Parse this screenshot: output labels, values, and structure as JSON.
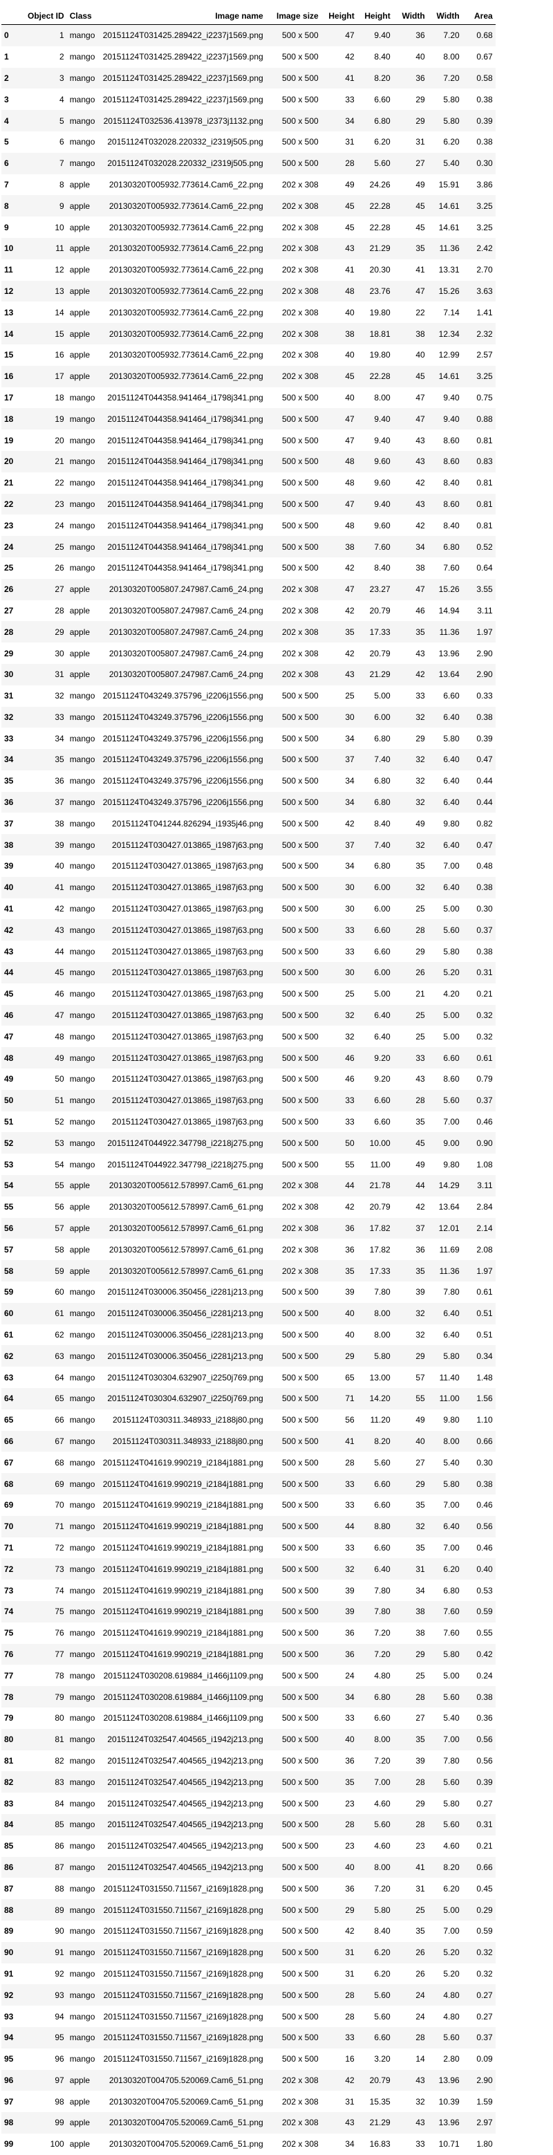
{
  "columns": [
    "",
    "Object ID",
    "Class",
    "Image name",
    "Image size",
    "Height",
    "Height",
    "Width",
    "Width",
    "Area"
  ],
  "rows": [
    [
      "0",
      "1",
      "mango",
      "20151124T031425.289422_i2237j1569.png",
      "500 x 500",
      "47",
      "9.40",
      "36",
      "7.20",
      "0.68"
    ],
    [
      "1",
      "2",
      "mango",
      "20151124T031425.289422_i2237j1569.png",
      "500 x 500",
      "42",
      "8.40",
      "40",
      "8.00",
      "0.67"
    ],
    [
      "2",
      "3",
      "mango",
      "20151124T031425.289422_i2237j1569.png",
      "500 x 500",
      "41",
      "8.20",
      "36",
      "7.20",
      "0.58"
    ],
    [
      "3",
      "4",
      "mango",
      "20151124T031425.289422_i2237j1569.png",
      "500 x 500",
      "33",
      "6.60",
      "29",
      "5.80",
      "0.38"
    ],
    [
      "4",
      "5",
      "mango",
      "20151124T032536.413978_i2373j1132.png",
      "500 x 500",
      "34",
      "6.80",
      "29",
      "5.80",
      "0.39"
    ],
    [
      "5",
      "6",
      "mango",
      "20151124T032028.220332_i2319j505.png",
      "500 x 500",
      "31",
      "6.20",
      "31",
      "6.20",
      "0.38"
    ],
    [
      "6",
      "7",
      "mango",
      "20151124T032028.220332_i2319j505.png",
      "500 x 500",
      "28",
      "5.60",
      "27",
      "5.40",
      "0.30"
    ],
    [
      "7",
      "8",
      "apple",
      "20130320T005932.773614.Cam6_22.png",
      "202 x 308",
      "49",
      "24.26",
      "49",
      "15.91",
      "3.86"
    ],
    [
      "8",
      "9",
      "apple",
      "20130320T005932.773614.Cam6_22.png",
      "202 x 308",
      "45",
      "22.28",
      "45",
      "14.61",
      "3.25"
    ],
    [
      "9",
      "10",
      "apple",
      "20130320T005932.773614.Cam6_22.png",
      "202 x 308",
      "45",
      "22.28",
      "45",
      "14.61",
      "3.25"
    ],
    [
      "10",
      "11",
      "apple",
      "20130320T005932.773614.Cam6_22.png",
      "202 x 308",
      "43",
      "21.29",
      "35",
      "11.36",
      "2.42"
    ],
    [
      "11",
      "12",
      "apple",
      "20130320T005932.773614.Cam6_22.png",
      "202 x 308",
      "41",
      "20.30",
      "41",
      "13.31",
      "2.70"
    ],
    [
      "12",
      "13",
      "apple",
      "20130320T005932.773614.Cam6_22.png",
      "202 x 308",
      "48",
      "23.76",
      "47",
      "15.26",
      "3.63"
    ],
    [
      "13",
      "14",
      "apple",
      "20130320T005932.773614.Cam6_22.png",
      "202 x 308",
      "40",
      "19.80",
      "22",
      "7.14",
      "1.41"
    ],
    [
      "14",
      "15",
      "apple",
      "20130320T005932.773614.Cam6_22.png",
      "202 x 308",
      "38",
      "18.81",
      "38",
      "12.34",
      "2.32"
    ],
    [
      "15",
      "16",
      "apple",
      "20130320T005932.773614.Cam6_22.png",
      "202 x 308",
      "40",
      "19.80",
      "40",
      "12.99",
      "2.57"
    ],
    [
      "16",
      "17",
      "apple",
      "20130320T005932.773614.Cam6_22.png",
      "202 x 308",
      "45",
      "22.28",
      "45",
      "14.61",
      "3.25"
    ],
    [
      "17",
      "18",
      "mango",
      "20151124T044358.941464_i1798j341.png",
      "500 x 500",
      "40",
      "8.00",
      "47",
      "9.40",
      "0.75"
    ],
    [
      "18",
      "19",
      "mango",
      "20151124T044358.941464_i1798j341.png",
      "500 x 500",
      "47",
      "9.40",
      "47",
      "9.40",
      "0.88"
    ],
    [
      "19",
      "20",
      "mango",
      "20151124T044358.941464_i1798j341.png",
      "500 x 500",
      "47",
      "9.40",
      "43",
      "8.60",
      "0.81"
    ],
    [
      "20",
      "21",
      "mango",
      "20151124T044358.941464_i1798j341.png",
      "500 x 500",
      "48",
      "9.60",
      "43",
      "8.60",
      "0.83"
    ],
    [
      "21",
      "22",
      "mango",
      "20151124T044358.941464_i1798j341.png",
      "500 x 500",
      "48",
      "9.60",
      "42",
      "8.40",
      "0.81"
    ],
    [
      "22",
      "23",
      "mango",
      "20151124T044358.941464_i1798j341.png",
      "500 x 500",
      "47",
      "9.40",
      "43",
      "8.60",
      "0.81"
    ],
    [
      "23",
      "24",
      "mango",
      "20151124T044358.941464_i1798j341.png",
      "500 x 500",
      "48",
      "9.60",
      "42",
      "8.40",
      "0.81"
    ],
    [
      "24",
      "25",
      "mango",
      "20151124T044358.941464_i1798j341.png",
      "500 x 500",
      "38",
      "7.60",
      "34",
      "6.80",
      "0.52"
    ],
    [
      "25",
      "26",
      "mango",
      "20151124T044358.941464_i1798j341.png",
      "500 x 500",
      "42",
      "8.40",
      "38",
      "7.60",
      "0.64"
    ],
    [
      "26",
      "27",
      "apple",
      "20130320T005807.247987.Cam6_24.png",
      "202 x 308",
      "47",
      "23.27",
      "47",
      "15.26",
      "3.55"
    ],
    [
      "27",
      "28",
      "apple",
      "20130320T005807.247987.Cam6_24.png",
      "202 x 308",
      "42",
      "20.79",
      "46",
      "14.94",
      "3.11"
    ],
    [
      "28",
      "29",
      "apple",
      "20130320T005807.247987.Cam6_24.png",
      "202 x 308",
      "35",
      "17.33",
      "35",
      "11.36",
      "1.97"
    ],
    [
      "29",
      "30",
      "apple",
      "20130320T005807.247987.Cam6_24.png",
      "202 x 308",
      "42",
      "20.79",
      "43",
      "13.96",
      "2.90"
    ],
    [
      "30",
      "31",
      "apple",
      "20130320T005807.247987.Cam6_24.png",
      "202 x 308",
      "43",
      "21.29",
      "42",
      "13.64",
      "2.90"
    ],
    [
      "31",
      "32",
      "mango",
      "20151124T043249.375796_i2206j1556.png",
      "500 x 500",
      "25",
      "5.00",
      "33",
      "6.60",
      "0.33"
    ],
    [
      "32",
      "33",
      "mango",
      "20151124T043249.375796_i2206j1556.png",
      "500 x 500",
      "30",
      "6.00",
      "32",
      "6.40",
      "0.38"
    ],
    [
      "33",
      "34",
      "mango",
      "20151124T043249.375796_i2206j1556.png",
      "500 x 500",
      "34",
      "6.80",
      "29",
      "5.80",
      "0.39"
    ],
    [
      "34",
      "35",
      "mango",
      "20151124T043249.375796_i2206j1556.png",
      "500 x 500",
      "37",
      "7.40",
      "32",
      "6.40",
      "0.47"
    ],
    [
      "35",
      "36",
      "mango",
      "20151124T043249.375796_i2206j1556.png",
      "500 x 500",
      "34",
      "6.80",
      "32",
      "6.40",
      "0.44"
    ],
    [
      "36",
      "37",
      "mango",
      "20151124T043249.375796_i2206j1556.png",
      "500 x 500",
      "34",
      "6.80",
      "32",
      "6.40",
      "0.44"
    ],
    [
      "37",
      "38",
      "mango",
      "20151124T041244.826294_i1935j46.png",
      "500 x 500",
      "42",
      "8.40",
      "49",
      "9.80",
      "0.82"
    ],
    [
      "38",
      "39",
      "mango",
      "20151124T030427.013865_i1987j63.png",
      "500 x 500",
      "37",
      "7.40",
      "32",
      "6.40",
      "0.47"
    ],
    [
      "39",
      "40",
      "mango",
      "20151124T030427.013865_i1987j63.png",
      "500 x 500",
      "34",
      "6.80",
      "35",
      "7.00",
      "0.48"
    ],
    [
      "40",
      "41",
      "mango",
      "20151124T030427.013865_i1987j63.png",
      "500 x 500",
      "30",
      "6.00",
      "32",
      "6.40",
      "0.38"
    ],
    [
      "41",
      "42",
      "mango",
      "20151124T030427.013865_i1987j63.png",
      "500 x 500",
      "30",
      "6.00",
      "25",
      "5.00",
      "0.30"
    ],
    [
      "42",
      "43",
      "mango",
      "20151124T030427.013865_i1987j63.png",
      "500 x 500",
      "33",
      "6.60",
      "28",
      "5.60",
      "0.37"
    ],
    [
      "43",
      "44",
      "mango",
      "20151124T030427.013865_i1987j63.png",
      "500 x 500",
      "33",
      "6.60",
      "29",
      "5.80",
      "0.38"
    ],
    [
      "44",
      "45",
      "mango",
      "20151124T030427.013865_i1987j63.png",
      "500 x 500",
      "30",
      "6.00",
      "26",
      "5.20",
      "0.31"
    ],
    [
      "45",
      "46",
      "mango",
      "20151124T030427.013865_i1987j63.png",
      "500 x 500",
      "25",
      "5.00",
      "21",
      "4.20",
      "0.21"
    ],
    [
      "46",
      "47",
      "mango",
      "20151124T030427.013865_i1987j63.png",
      "500 x 500",
      "32",
      "6.40",
      "25",
      "5.00",
      "0.32"
    ],
    [
      "47",
      "48",
      "mango",
      "20151124T030427.013865_i1987j63.png",
      "500 x 500",
      "32",
      "6.40",
      "25",
      "5.00",
      "0.32"
    ],
    [
      "48",
      "49",
      "mango",
      "20151124T030427.013865_i1987j63.png",
      "500 x 500",
      "46",
      "9.20",
      "33",
      "6.60",
      "0.61"
    ],
    [
      "49",
      "50",
      "mango",
      "20151124T030427.013865_i1987j63.png",
      "500 x 500",
      "46",
      "9.20",
      "43",
      "8.60",
      "0.79"
    ],
    [
      "50",
      "51",
      "mango",
      "20151124T030427.013865_i1987j63.png",
      "500 x 500",
      "33",
      "6.60",
      "28",
      "5.60",
      "0.37"
    ],
    [
      "51",
      "52",
      "mango",
      "20151124T030427.013865_i1987j63.png",
      "500 x 500",
      "33",
      "6.60",
      "35",
      "7.00",
      "0.46"
    ],
    [
      "52",
      "53",
      "mango",
      "20151124T044922.347798_i2218j275.png",
      "500 x 500",
      "50",
      "10.00",
      "45",
      "9.00",
      "0.90"
    ],
    [
      "53",
      "54",
      "mango",
      "20151124T044922.347798_i2218j275.png",
      "500 x 500",
      "55",
      "11.00",
      "49",
      "9.80",
      "1.08"
    ],
    [
      "54",
      "55",
      "apple",
      "20130320T005612.578997.Cam6_61.png",
      "202 x 308",
      "44",
      "21.78",
      "44",
      "14.29",
      "3.11"
    ],
    [
      "55",
      "56",
      "apple",
      "20130320T005612.578997.Cam6_61.png",
      "202 x 308",
      "42",
      "20.79",
      "42",
      "13.64",
      "2.84"
    ],
    [
      "56",
      "57",
      "apple",
      "20130320T005612.578997.Cam6_61.png",
      "202 x 308",
      "36",
      "17.82",
      "37",
      "12.01",
      "2.14"
    ],
    [
      "57",
      "58",
      "apple",
      "20130320T005612.578997.Cam6_61.png",
      "202 x 308",
      "36",
      "17.82",
      "36",
      "11.69",
      "2.08"
    ],
    [
      "58",
      "59",
      "apple",
      "20130320T005612.578997.Cam6_61.png",
      "202 x 308",
      "35",
      "17.33",
      "35",
      "11.36",
      "1.97"
    ],
    [
      "59",
      "60",
      "mango",
      "20151124T030006.350456_i2281j213.png",
      "500 x 500",
      "39",
      "7.80",
      "39",
      "7.80",
      "0.61"
    ],
    [
      "60",
      "61",
      "mango",
      "20151124T030006.350456_i2281j213.png",
      "500 x 500",
      "40",
      "8.00",
      "32",
      "6.40",
      "0.51"
    ],
    [
      "61",
      "62",
      "mango",
      "20151124T030006.350456_i2281j213.png",
      "500 x 500",
      "40",
      "8.00",
      "32",
      "6.40",
      "0.51"
    ],
    [
      "62",
      "63",
      "mango",
      "20151124T030006.350456_i2281j213.png",
      "500 x 500",
      "29",
      "5.80",
      "29",
      "5.80",
      "0.34"
    ],
    [
      "63",
      "64",
      "mango",
      "20151124T030304.632907_i2250j769.png",
      "500 x 500",
      "65",
      "13.00",
      "57",
      "11.40",
      "1.48"
    ],
    [
      "64",
      "65",
      "mango",
      "20151124T030304.632907_i2250j769.png",
      "500 x 500",
      "71",
      "14.20",
      "55",
      "11.00",
      "1.56"
    ],
    [
      "65",
      "66",
      "mango",
      "20151124T030311.348933_i2188j80.png",
      "500 x 500",
      "56",
      "11.20",
      "49",
      "9.80",
      "1.10"
    ],
    [
      "66",
      "67",
      "mango",
      "20151124T030311.348933_i2188j80.png",
      "500 x 500",
      "41",
      "8.20",
      "40",
      "8.00",
      "0.66"
    ],
    [
      "67",
      "68",
      "mango",
      "20151124T041619.990219_i2184j1881.png",
      "500 x 500",
      "28",
      "5.60",
      "27",
      "5.40",
      "0.30"
    ],
    [
      "68",
      "69",
      "mango",
      "20151124T041619.990219_i2184j1881.png",
      "500 x 500",
      "33",
      "6.60",
      "29",
      "5.80",
      "0.38"
    ],
    [
      "69",
      "70",
      "mango",
      "20151124T041619.990219_i2184j1881.png",
      "500 x 500",
      "33",
      "6.60",
      "35",
      "7.00",
      "0.46"
    ],
    [
      "70",
      "71",
      "mango",
      "20151124T041619.990219_i2184j1881.png",
      "500 x 500",
      "44",
      "8.80",
      "32",
      "6.40",
      "0.56"
    ],
    [
      "71",
      "72",
      "mango",
      "20151124T041619.990219_i2184j1881.png",
      "500 x 500",
      "33",
      "6.60",
      "35",
      "7.00",
      "0.46"
    ],
    [
      "72",
      "73",
      "mango",
      "20151124T041619.990219_i2184j1881.png",
      "500 x 500",
      "32",
      "6.40",
      "31",
      "6.20",
      "0.40"
    ],
    [
      "73",
      "74",
      "mango",
      "20151124T041619.990219_i2184j1881.png",
      "500 x 500",
      "39",
      "7.80",
      "34",
      "6.80",
      "0.53"
    ],
    [
      "74",
      "75",
      "mango",
      "20151124T041619.990219_i2184j1881.png",
      "500 x 500",
      "39",
      "7.80",
      "38",
      "7.60",
      "0.59"
    ],
    [
      "75",
      "76",
      "mango",
      "20151124T041619.990219_i2184j1881.png",
      "500 x 500",
      "36",
      "7.20",
      "38",
      "7.60",
      "0.55"
    ],
    [
      "76",
      "77",
      "mango",
      "20151124T041619.990219_i2184j1881.png",
      "500 x 500",
      "36",
      "7.20",
      "29",
      "5.80",
      "0.42"
    ],
    [
      "77",
      "78",
      "mango",
      "20151124T030208.619884_i1466j1109.png",
      "500 x 500",
      "24",
      "4.80",
      "25",
      "5.00",
      "0.24"
    ],
    [
      "78",
      "79",
      "mango",
      "20151124T030208.619884_i1466j1109.png",
      "500 x 500",
      "34",
      "6.80",
      "28",
      "5.60",
      "0.38"
    ],
    [
      "79",
      "80",
      "mango",
      "20151124T030208.619884_i1466j1109.png",
      "500 x 500",
      "33",
      "6.60",
      "27",
      "5.40",
      "0.36"
    ],
    [
      "80",
      "81",
      "mango",
      "20151124T032547.404565_i1942j213.png",
      "500 x 500",
      "40",
      "8.00",
      "35",
      "7.00",
      "0.56"
    ],
    [
      "81",
      "82",
      "mango",
      "20151124T032547.404565_i1942j213.png",
      "500 x 500",
      "36",
      "7.20",
      "39",
      "7.80",
      "0.56"
    ],
    [
      "82",
      "83",
      "mango",
      "20151124T032547.404565_i1942j213.png",
      "500 x 500",
      "35",
      "7.00",
      "28",
      "5.60",
      "0.39"
    ],
    [
      "83",
      "84",
      "mango",
      "20151124T032547.404565_i1942j213.png",
      "500 x 500",
      "23",
      "4.60",
      "29",
      "5.80",
      "0.27"
    ],
    [
      "84",
      "85",
      "mango",
      "20151124T032547.404565_i1942j213.png",
      "500 x 500",
      "28",
      "5.60",
      "28",
      "5.60",
      "0.31"
    ],
    [
      "85",
      "86",
      "mango",
      "20151124T032547.404565_i1942j213.png",
      "500 x 500",
      "23",
      "4.60",
      "23",
      "4.60",
      "0.21"
    ],
    [
      "86",
      "87",
      "mango",
      "20151124T032547.404565_i1942j213.png",
      "500 x 500",
      "40",
      "8.00",
      "41",
      "8.20",
      "0.66"
    ],
    [
      "87",
      "88",
      "mango",
      "20151124T031550.711567_i2169j1828.png",
      "500 x 500",
      "36",
      "7.20",
      "31",
      "6.20",
      "0.45"
    ],
    [
      "88",
      "89",
      "mango",
      "20151124T031550.711567_i2169j1828.png",
      "500 x 500",
      "29",
      "5.80",
      "25",
      "5.00",
      "0.29"
    ],
    [
      "89",
      "90",
      "mango",
      "20151124T031550.711567_i2169j1828.png",
      "500 x 500",
      "42",
      "8.40",
      "35",
      "7.00",
      "0.59"
    ],
    [
      "90",
      "91",
      "mango",
      "20151124T031550.711567_i2169j1828.png",
      "500 x 500",
      "31",
      "6.20",
      "26",
      "5.20",
      "0.32"
    ],
    [
      "91",
      "92",
      "mango",
      "20151124T031550.711567_i2169j1828.png",
      "500 x 500",
      "31",
      "6.20",
      "26",
      "5.20",
      "0.32"
    ],
    [
      "92",
      "93",
      "mango",
      "20151124T031550.711567_i2169j1828.png",
      "500 x 500",
      "28",
      "5.60",
      "24",
      "4.80",
      "0.27"
    ],
    [
      "93",
      "94",
      "mango",
      "20151124T031550.711567_i2169j1828.png",
      "500 x 500",
      "28",
      "5.60",
      "24",
      "4.80",
      "0.27"
    ],
    [
      "94",
      "95",
      "mango",
      "20151124T031550.711567_i2169j1828.png",
      "500 x 500",
      "33",
      "6.60",
      "28",
      "5.60",
      "0.37"
    ],
    [
      "95",
      "96",
      "mango",
      "20151124T031550.711567_i2169j1828.png",
      "500 x 500",
      "16",
      "3.20",
      "14",
      "2.80",
      "0.09"
    ],
    [
      "96",
      "97",
      "apple",
      "20130320T004705.520069.Cam6_51.png",
      "202 x 308",
      "42",
      "20.79",
      "43",
      "13.96",
      "2.90"
    ],
    [
      "97",
      "98",
      "apple",
      "20130320T004705.520069.Cam6_51.png",
      "202 x 308",
      "31",
      "15.35",
      "32",
      "10.39",
      "1.59"
    ],
    [
      "98",
      "99",
      "apple",
      "20130320T004705.520069.Cam6_51.png",
      "202 x 308",
      "43",
      "21.29",
      "43",
      "13.96",
      "2.97"
    ],
    [
      "99",
      "100",
      "apple",
      "20130320T004705.520069.Cam6_51.png",
      "202 x 308",
      "34",
      "16.83",
      "33",
      "10.71",
      "1.80"
    ]
  ]
}
